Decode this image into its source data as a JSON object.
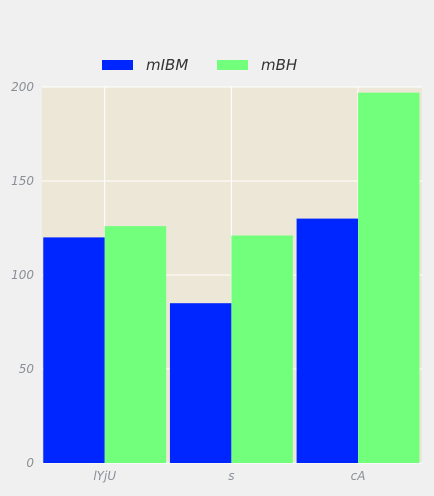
{
  "chart_data": {
    "type": "bar",
    "categories": [
      "lYjU",
      "s",
      "cA"
    ],
    "series": [
      {
        "name": "mIBM",
        "values": [
          120,
          85,
          130
        ],
        "color": "#0026ff"
      },
      {
        "name": "mBH",
        "values": [
          126,
          121,
          197
        ],
        "color": "#72ff7c"
      }
    ],
    "ylim": [
      0,
      200
    ],
    "yticks": [
      0,
      50,
      100,
      150,
      200
    ],
    "grid": true,
    "legend_position": "top-center",
    "plot_background": "#ede7d7"
  }
}
